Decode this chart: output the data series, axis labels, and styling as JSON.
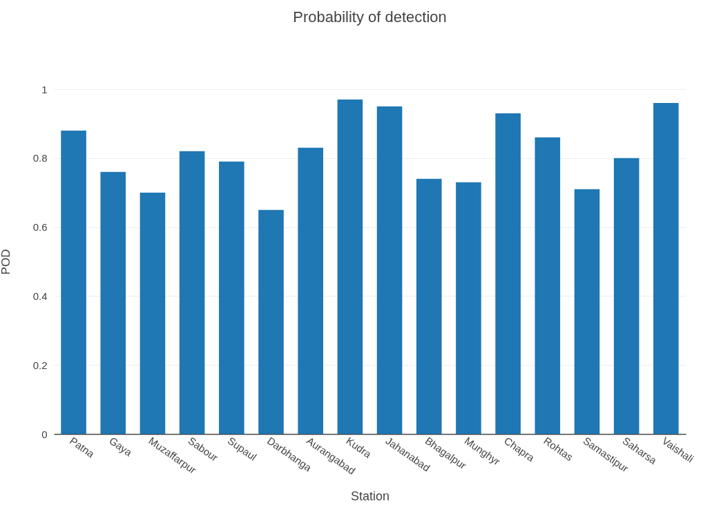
{
  "chart_data": {
    "type": "bar",
    "title": "Probability of  detection",
    "xlabel": "Station",
    "ylabel": "POD",
    "categories": [
      "Patna",
      "Gaya",
      "Muzaffarpur",
      "Sabour",
      "Supaul",
      "Darbhanga",
      "Aurangabad",
      "Kudra",
      "Jahanabad",
      "Bhagalpur",
      "Munghyr",
      "Chapra",
      "Rohtas",
      "Samastipur",
      "Saharsa",
      "Vaishali"
    ],
    "values": [
      0.88,
      0.76,
      0.7,
      0.82,
      0.79,
      0.65,
      0.83,
      0.97,
      0.95,
      0.74,
      0.73,
      0.93,
      0.86,
      0.71,
      0.8,
      0.96
    ],
    "color": "#1f77b4",
    "ylim": [
      0,
      1
    ],
    "yticks": [
      0,
      0.2,
      0.4,
      0.6,
      0.8,
      1
    ],
    "grid": "y"
  }
}
